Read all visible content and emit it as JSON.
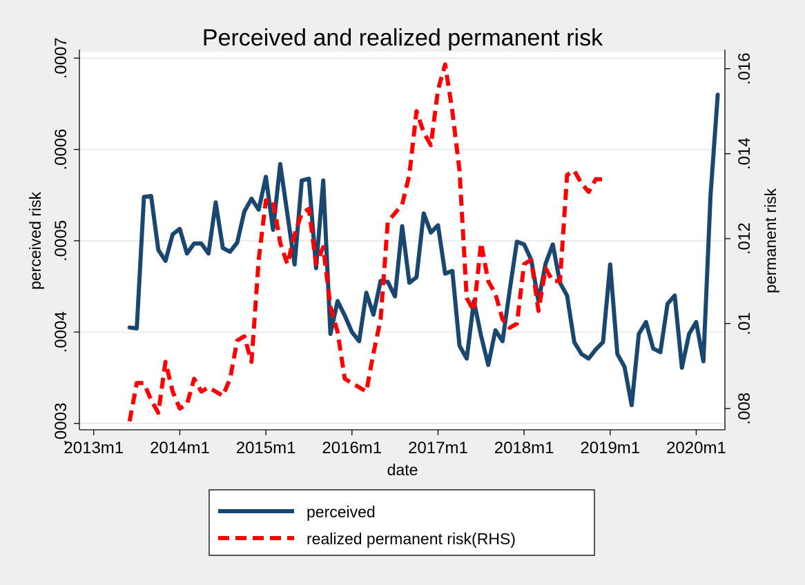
{
  "chart_data": {
    "type": "line",
    "title": "Perceived and realized permanent risk",
    "xlabel": "date",
    "ylabel_left": "perceived risk",
    "ylabel_right": "permanent risk",
    "x_ticks": [
      "2013m1",
      "2014m1",
      "2015m1",
      "2016m1",
      "2017m1",
      "2018m1",
      "2019m1",
      "2020m1"
    ],
    "y_left_ticks": [
      ".0003",
      ".0004",
      ".0005",
      ".0006",
      ".0007"
    ],
    "y_left_tick_values": [
      0.0003,
      0.0004,
      0.0005,
      0.0006,
      0.0007
    ],
    "y_right_ticks": [
      ".008",
      ".01",
      ".012",
      ".014",
      ".016"
    ],
    "y_right_tick_values": [
      0.008,
      0.01,
      0.012,
      0.014,
      0.016
    ],
    "x_range": [
      "2012m11",
      "2020m5"
    ],
    "y_left_range": [
      0.000293,
      0.000707
    ],
    "y_right_range": [
      0.0075,
      0.0164
    ],
    "grid": true,
    "legend_position": "bottom",
    "series": [
      {
        "name": "perceived",
        "axis": "left",
        "color": "#1a476f",
        "style": "solid",
        "x": [
          "2013m6",
          "2013m7",
          "2013m8",
          "2013m9",
          "2013m10",
          "2013m11",
          "2013m12",
          "2014m1",
          "2014m2",
          "2014m3",
          "2014m4",
          "2014m5",
          "2014m6",
          "2014m7",
          "2014m8",
          "2014m9",
          "2014m10",
          "2014m11",
          "2014m12",
          "2015m1",
          "2015m2",
          "2015m3",
          "2015m4",
          "2015m5",
          "2015m6",
          "2015m7",
          "2015m8",
          "2015m9",
          "2015m10",
          "2015m11",
          "2015m12",
          "2016m1",
          "2016m2",
          "2016m3",
          "2016m4",
          "2016m5",
          "2016m6",
          "2016m7",
          "2016m8",
          "2016m9",
          "2016m10",
          "2016m11",
          "2016m12",
          "2017m1",
          "2017m2",
          "2017m3",
          "2017m4",
          "2017m5",
          "2017m6",
          "2017m7",
          "2017m8",
          "2017m9",
          "2017m10",
          "2017m11",
          "2017m12",
          "2018m1",
          "2018m2",
          "2018m3",
          "2018m4",
          "2018m5",
          "2018m6",
          "2018m7",
          "2018m8",
          "2018m9",
          "2018m10",
          "2018m11",
          "2018m12",
          "2019m1",
          "2019m2",
          "2019m3",
          "2019m4",
          "2019m5",
          "2019m6",
          "2019m7",
          "2019m8",
          "2019m9",
          "2019m10",
          "2019m11",
          "2019m12",
          "2020m1",
          "2020m2",
          "2020m3",
          "2020m4"
        ],
        "values": [
          0.000405,
          0.000404,
          0.000548,
          0.000549,
          0.00049,
          0.000478,
          0.000507,
          0.000513,
          0.000486,
          0.000497,
          0.000497,
          0.000486,
          0.000542,
          0.000492,
          0.000488,
          0.000498,
          0.000532,
          0.000546,
          0.000534,
          0.00057,
          0.000512,
          0.000584,
          0.000529,
          0.000474,
          0.000566,
          0.000568,
          0.00047,
          0.000566,
          0.000398,
          0.000434,
          0.000418,
          0.0004,
          0.00039,
          0.000443,
          0.000419,
          0.000456,
          0.000455,
          0.000439,
          0.000516,
          0.000454,
          0.00046,
          0.00053,
          0.000509,
          0.000517,
          0.000464,
          0.000467,
          0.000385,
          0.000371,
          0.000434,
          0.000396,
          0.000364,
          0.000402,
          0.00039,
          0.000446,
          0.000499,
          0.000496,
          0.000479,
          0.000434,
          0.000475,
          0.000496,
          0.000454,
          0.00044,
          0.000389,
          0.000376,
          0.000371,
          0.000381,
          0.000389,
          0.000474,
          0.000376,
          0.000362,
          0.00032,
          0.000398,
          0.000411,
          0.000382,
          0.000378,
          0.000431,
          0.00044,
          0.000361,
          0.000398,
          0.000411,
          0.000368,
          0.00055,
          0.00066
        ]
      },
      {
        "name": "realized permanent risk(RHS)",
        "axis": "right",
        "color": "#ff0000",
        "style": "dashed",
        "x": [
          "2013m6",
          "2013m7",
          "2013m8",
          "2013m9",
          "2013m10",
          "2013m11",
          "2013m12",
          "2014m1",
          "2014m2",
          "2014m3",
          "2014m4",
          "2014m5",
          "2014m6",
          "2014m7",
          "2014m8",
          "2014m9",
          "2014m10",
          "2014m11",
          "2014m12",
          "2015m1",
          "2015m2",
          "2015m3",
          "2015m4",
          "2015m5",
          "2015m6",
          "2015m7",
          "2015m8",
          "2015m9",
          "2015m10",
          "2015m11",
          "2015m12",
          "2016m1",
          "2016m2",
          "2016m3",
          "2016m4",
          "2016m5",
          "2016m6",
          "2016m7",
          "2016m8",
          "2016m9",
          "2016m10",
          "2016m11",
          "2016m12",
          "2017m1",
          "2017m2",
          "2017m3",
          "2017m4",
          "2017m5",
          "2017m6",
          "2017m7",
          "2017m8",
          "2017m9",
          "2017m10",
          "2017m11",
          "2017m12",
          "2018m1",
          "2018m2",
          "2018m3",
          "2018m4",
          "2018m5",
          "2018m6",
          "2018m7",
          "2018m8",
          "2018m9",
          "2018m10",
          "2018m11",
          "2018m12"
        ],
        "values": [
          0.0077,
          0.0086,
          0.0086,
          0.0082,
          0.0079,
          0.0091,
          0.0084,
          0.008,
          0.0081,
          0.0087,
          0.0084,
          0.0085,
          0.0084,
          0.0083,
          0.0087,
          0.0096,
          0.0097,
          0.0091,
          0.0115,
          0.0129,
          0.0129,
          0.0119,
          0.0114,
          0.0121,
          0.0126,
          0.0127,
          0.0114,
          0.0118,
          0.0104,
          0.0098,
          0.0087,
          0.0086,
          0.0085,
          0.0084,
          0.0093,
          0.0101,
          0.0124,
          0.0126,
          0.0128,
          0.0135,
          0.015,
          0.0145,
          0.0142,
          0.0155,
          0.0161,
          0.015,
          0.0136,
          0.0106,
          0.0103,
          0.0119,
          0.011,
          0.0107,
          0.0101,
          0.0099,
          0.01,
          0.0114,
          0.0115,
          0.0103,
          0.0113,
          0.011,
          0.011,
          0.0135,
          0.0136,
          0.0133,
          0.0131,
          0.0134,
          0.0134
        ]
      }
    ],
    "legend": [
      {
        "label": "perceived",
        "color": "#1a476f",
        "style": "solid"
      },
      {
        "label": "realized permanent risk(RHS)",
        "color": "#ff0000",
        "style": "dashed"
      }
    ]
  }
}
